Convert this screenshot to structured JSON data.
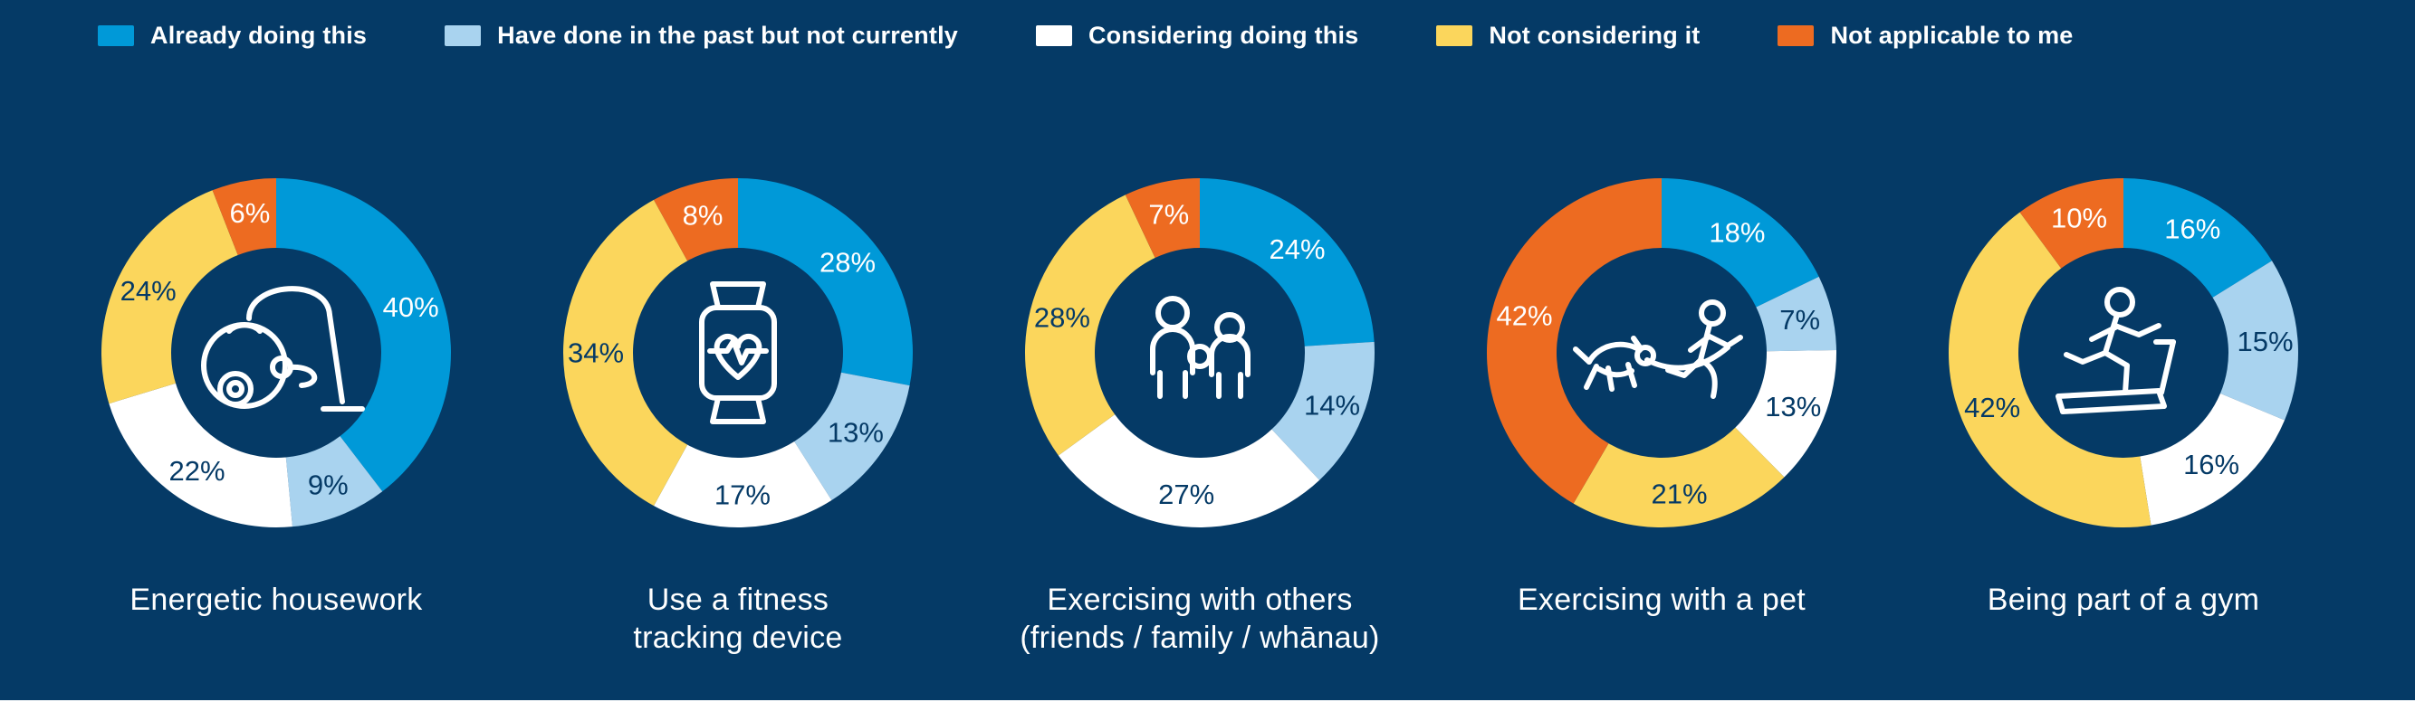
{
  "page": {
    "background_color": "#053A66",
    "text_color": "#FFFFFF"
  },
  "chart_data": {
    "type": "pie",
    "variant": "donut-multiples",
    "unit": "%",
    "legend_position": "top",
    "categories": [
      {
        "label": "Already doing this",
        "color": "#0099D8",
        "label_text_color": "#FFFFFF"
      },
      {
        "label": "Have done in the past but not currently",
        "color": "#A9D3EF",
        "label_text_color": "#053A66"
      },
      {
        "label": "Considering doing this",
        "color": "#FFFFFF",
        "label_text_color": "#053A66"
      },
      {
        "label": "Not considering it",
        "color": "#FBD65C",
        "label_text_color": "#053A66"
      },
      {
        "label": "Not applicable to me",
        "color": "#ED6B21",
        "label_text_color": "#FFFFFF"
      }
    ],
    "charts": [
      {
        "title": "Energetic housework",
        "title_lines": [
          "Energetic housework"
        ],
        "icon": "vacuum-cleaner-icon",
        "values": [
          40,
          9,
          22,
          24,
          6
        ],
        "value_labels": [
          "40%",
          "9%",
          "22%",
          "24%",
          "6%"
        ]
      },
      {
        "title": "Use a fitness tracking device",
        "title_lines": [
          "Use a fitness",
          "tracking device"
        ],
        "icon": "fitness-watch-icon",
        "values": [
          28,
          13,
          17,
          34,
          8
        ],
        "value_labels": [
          "28%",
          "13%",
          "17%",
          "34%",
          "8%"
        ]
      },
      {
        "title": "Exercising with others (friends / family / whānau)",
        "title_lines": [
          "Exercising with others",
          "(friends / family / whānau)"
        ],
        "icon": "family-icon",
        "values": [
          24,
          14,
          27,
          28,
          7
        ],
        "value_labels": [
          "24%",
          "14%",
          "27%",
          "28%",
          "7%"
        ]
      },
      {
        "title": "Exercising with a pet",
        "title_lines": [
          "Exercising with a pet"
        ],
        "icon": "running-with-dog-icon",
        "values": [
          18,
          7,
          13,
          21,
          42
        ],
        "value_labels": [
          "18%",
          "7%",
          "13%",
          "21%",
          "42%"
        ]
      },
      {
        "title": "Being part of a gym",
        "title_lines": [
          "Being part of a gym"
        ],
        "icon": "treadmill-icon",
        "values": [
          16,
          15,
          16,
          42,
          10
        ],
        "value_labels": [
          "16%",
          "15%",
          "16%",
          "42%",
          "10%"
        ]
      }
    ]
  }
}
